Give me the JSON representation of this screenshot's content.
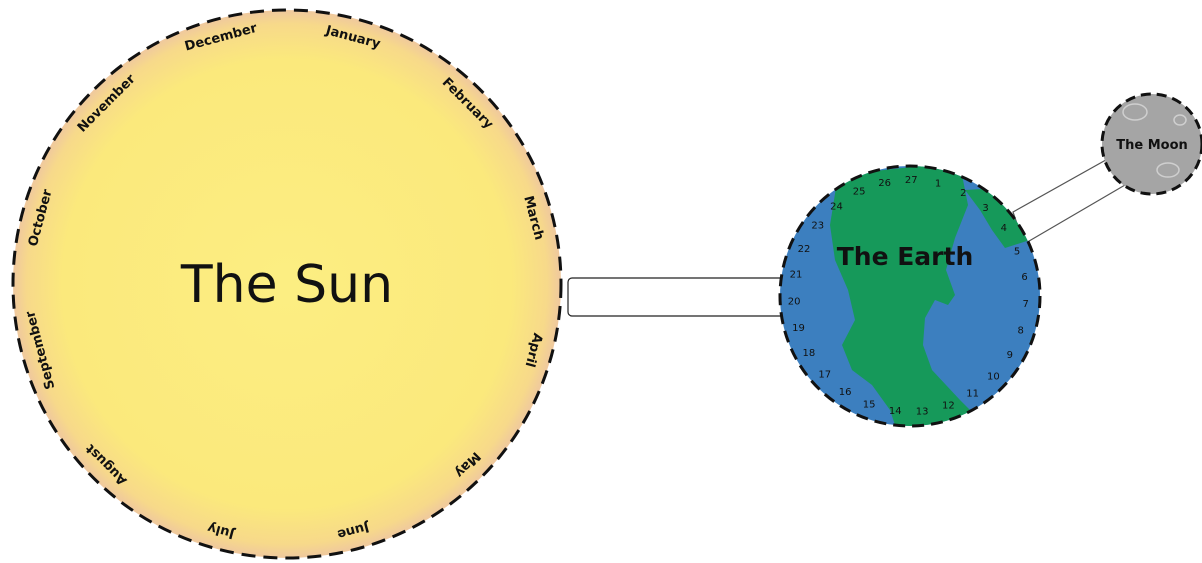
{
  "sun": {
    "title": "The Sun",
    "fill": "#FBEB7A",
    "months": [
      "January",
      "February",
      "March",
      "April",
      "May",
      "June",
      "July",
      "August",
      "September",
      "October",
      "November",
      "December"
    ]
  },
  "earth": {
    "title": "The Earth",
    "ocean_color": "#3C7FBF",
    "land_color": "#16995A",
    "days": [
      "1",
      "2",
      "3",
      "4",
      "5",
      "6",
      "7",
      "8",
      "9",
      "10",
      "11",
      "12",
      "13",
      "14",
      "15",
      "16",
      "17",
      "18",
      "19",
      "20",
      "21",
      "22",
      "23",
      "24",
      "25",
      "26",
      "27"
    ]
  },
  "moon": {
    "title": "The Moon",
    "fill": "#A5A5A5"
  }
}
